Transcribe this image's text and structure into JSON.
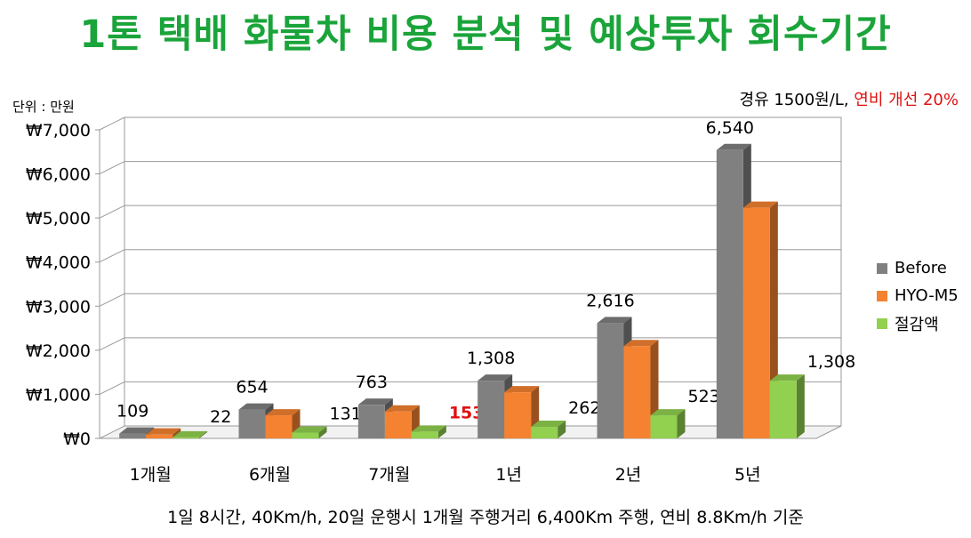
{
  "title": "1톤 택배 화물차 비용 분석 및 예상투자 회수기간",
  "unit_label": "단위 : 만원",
  "condition": {
    "fuel": "경유 1500원/L,",
    "improvement": "연비 개선 20%"
  },
  "footer_note": "1일 8시간, 40Km/h, 20일 운행시 1개월 주행거리 6,400Km 주행, 연비 8.8Km/h 기준",
  "colors": {
    "before": "#808080",
    "hyo": "#f58231",
    "saving": "#92d050",
    "highlight": "#e01010"
  },
  "chart_data": {
    "type": "bar",
    "categories": [
      "1개월",
      "6개월",
      "7개월",
      "1년",
      "2년",
      "5년"
    ],
    "series": [
      {
        "name": "Before",
        "values": [
          109,
          654,
          763,
          1308,
          2616,
          6540
        ],
        "labels": [
          "109",
          "654",
          "763",
          "1,308",
          "2,616",
          "6,540"
        ]
      },
      {
        "name": "HYO-M5",
        "values": [
          87,
          523,
          610,
          1046,
          2093,
          5232
        ]
      },
      {
        "name": "절감액",
        "values": [
          22,
          131,
          153,
          262,
          523,
          1308
        ],
        "labels": [
          "22",
          "131",
          "153",
          "262",
          "523",
          "1,308"
        ]
      }
    ],
    "highlight_label": {
      "series": 2,
      "index": 2
    },
    "ylim": [
      0,
      7000
    ],
    "yticks": [
      0,
      1000,
      2000,
      3000,
      4000,
      5000,
      6000,
      7000
    ],
    "ytick_labels": [
      "₩0",
      "₩1,000",
      "₩2,000",
      "₩3,000",
      "₩4,000",
      "₩5,000",
      "₩6,000",
      "₩7,000"
    ],
    "legend": [
      "Before",
      "HYO-M5",
      "절감액"
    ],
    "legend_position": "right",
    "grid": true
  }
}
